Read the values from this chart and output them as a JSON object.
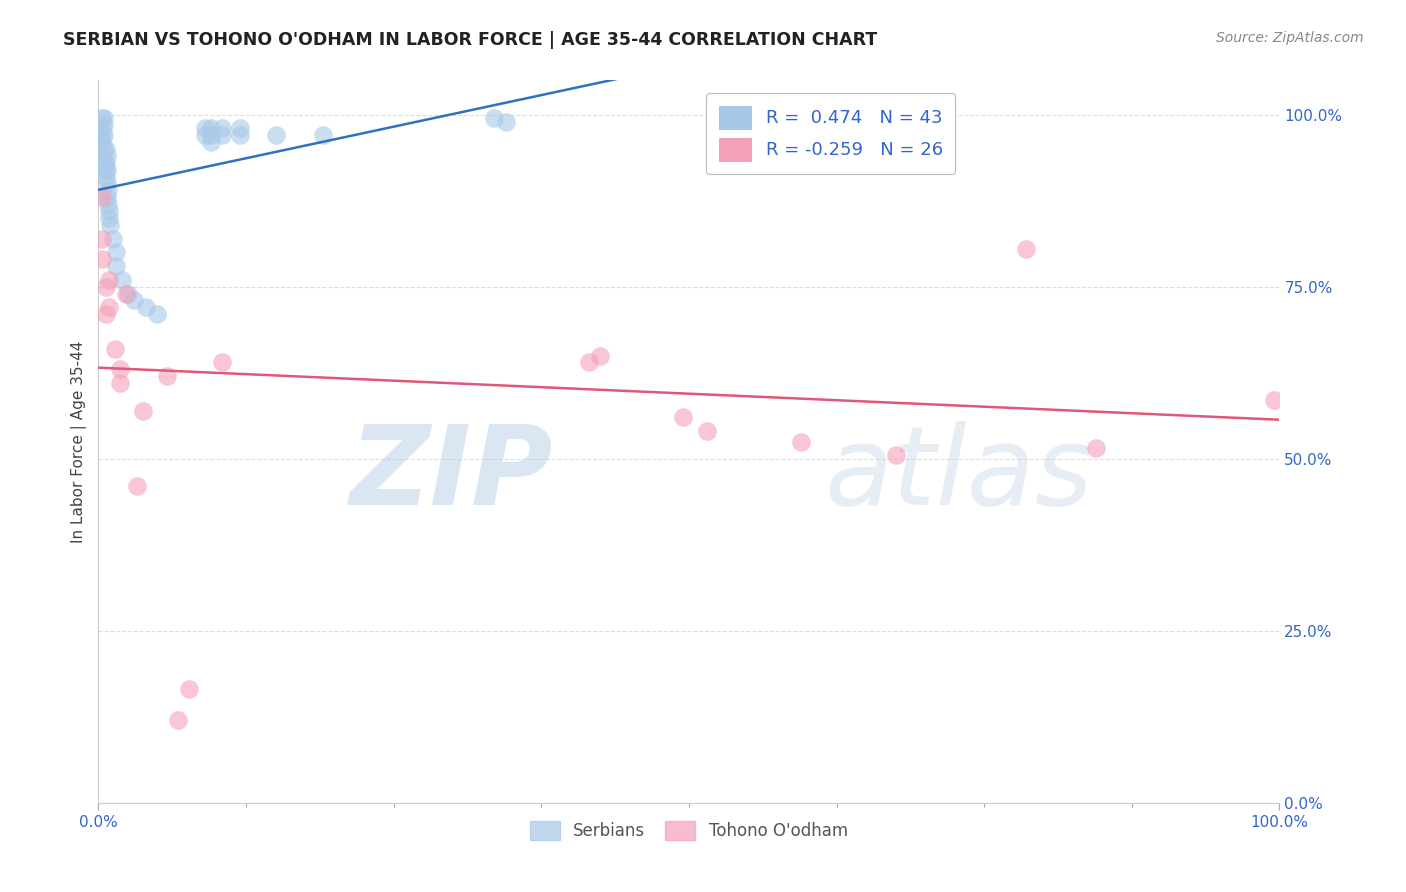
{
  "title": "SERBIAN VS TOHONO O'ODHAM IN LABOR FORCE | AGE 35-44 CORRELATION CHART",
  "source": "Source: ZipAtlas.com",
  "ylabel": "In Labor Force | Age 35-44",
  "xlim": [
    0.0,
    1.0
  ],
  "ylim": [
    0.0,
    1.05
  ],
  "ytick_labels": [
    "0.0%",
    "25.0%",
    "50.0%",
    "75.0%",
    "100.0%"
  ],
  "ytick_values": [
    0.0,
    0.25,
    0.5,
    0.75,
    1.0
  ],
  "watermark_zip": "ZIP",
  "watermark_atlas": "atlas",
  "legend_R1": "0.474",
  "legend_N1": "43",
  "legend_R2": "-0.259",
  "legend_N2": "26",
  "serbian_color": "#a8c8e8",
  "tohono_color": "#f4a0b8",
  "serbian_line_color": "#3070c0",
  "tohono_line_color": "#e05878",
  "bottom_legend": [
    "Serbians",
    "Tohono O'odham"
  ],
  "serbian_scatter": [
    [
      0.003,
      0.96
    ],
    [
      0.003,
      0.97
    ],
    [
      0.003,
      0.98
    ],
    [
      0.003,
      0.995
    ],
    [
      0.005,
      0.93
    ],
    [
      0.005,
      0.95
    ],
    [
      0.005,
      0.97
    ],
    [
      0.005,
      0.985
    ],
    [
      0.005,
      0.995
    ],
    [
      0.006,
      0.91
    ],
    [
      0.006,
      0.92
    ],
    [
      0.006,
      0.93
    ],
    [
      0.006,
      0.95
    ],
    [
      0.007,
      0.88
    ],
    [
      0.007,
      0.9
    ],
    [
      0.007,
      0.92
    ],
    [
      0.007,
      0.94
    ],
    [
      0.008,
      0.87
    ],
    [
      0.008,
      0.89
    ],
    [
      0.009,
      0.85
    ],
    [
      0.009,
      0.86
    ],
    [
      0.01,
      0.84
    ],
    [
      0.012,
      0.82
    ],
    [
      0.015,
      0.8
    ],
    [
      0.015,
      0.78
    ],
    [
      0.02,
      0.76
    ],
    [
      0.025,
      0.74
    ],
    [
      0.03,
      0.73
    ],
    [
      0.04,
      0.72
    ],
    [
      0.05,
      0.71
    ],
    [
      0.09,
      0.97
    ],
    [
      0.09,
      0.98
    ],
    [
      0.095,
      0.96
    ],
    [
      0.095,
      0.97
    ],
    [
      0.095,
      0.98
    ],
    [
      0.105,
      0.97
    ],
    [
      0.105,
      0.98
    ],
    [
      0.12,
      0.97
    ],
    [
      0.12,
      0.98
    ],
    [
      0.15,
      0.97
    ],
    [
      0.19,
      0.97
    ],
    [
      0.335,
      0.995
    ],
    [
      0.345,
      0.99
    ]
  ],
  "tohono_scatter": [
    [
      0.003,
      0.88
    ],
    [
      0.003,
      0.82
    ],
    [
      0.003,
      0.79
    ],
    [
      0.006,
      0.75
    ],
    [
      0.006,
      0.71
    ],
    [
      0.009,
      0.76
    ],
    [
      0.009,
      0.72
    ],
    [
      0.014,
      0.66
    ],
    [
      0.018,
      0.63
    ],
    [
      0.018,
      0.61
    ],
    [
      0.023,
      0.74
    ],
    [
      0.033,
      0.46
    ],
    [
      0.038,
      0.57
    ],
    [
      0.058,
      0.62
    ],
    [
      0.067,
      0.12
    ],
    [
      0.077,
      0.165
    ],
    [
      0.105,
      0.64
    ],
    [
      0.415,
      0.64
    ],
    [
      0.425,
      0.65
    ],
    [
      0.495,
      0.56
    ],
    [
      0.515,
      0.54
    ],
    [
      0.595,
      0.525
    ],
    [
      0.675,
      0.505
    ],
    [
      0.785,
      0.805
    ],
    [
      0.845,
      0.515
    ],
    [
      0.995,
      0.585
    ]
  ]
}
